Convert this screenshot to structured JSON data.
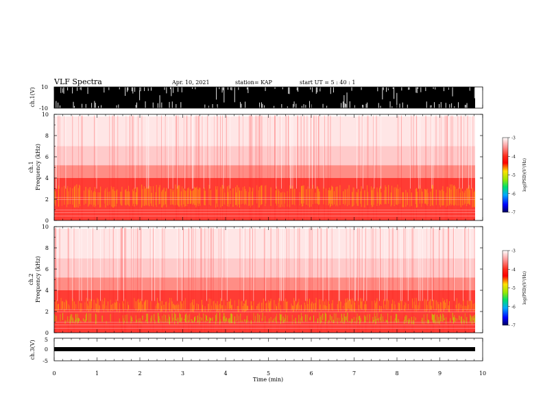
{
  "header": {
    "title": "VLF Spectra",
    "date": "Apr. 10, 2021",
    "station": "station= KAP",
    "start": "start  UT =   5 : 40 : 1"
  },
  "colorbar": {
    "label": "log(PSD)(V²/Hz)",
    "ticks": [
      "-3",
      "-4",
      "-5",
      "-6",
      "-7"
    ],
    "colors": [
      "#ffffff",
      "#ff9090",
      "#ff2a1a",
      "#ff0000",
      "#ffe000",
      "#9be800",
      "#00e06a",
      "#00a8ff",
      "#0000ff",
      "#000060"
    ]
  },
  "chart_data": [
    {
      "type": "line",
      "ylabel": "ch.1(V)",
      "ylim": [
        -10,
        10
      ],
      "yticks": [
        "10",
        "-10"
      ],
      "description_note": "",
      "values": []
    },
    {
      "type": "heatmap",
      "ylabel": "ch.1\nFrequency (kHz)",
      "ylabel_lines": [
        "ch.1",
        "Frequency (kHz)"
      ],
      "ylim": [
        0,
        10
      ],
      "yticks": [
        "0",
        "2",
        "4",
        "6",
        "8",
        "10"
      ],
      "xlim": [
        0,
        10
      ]
    },
    {
      "type": "heatmap",
      "ylabel_lines": [
        "ch.2",
        "Frequency (kHz)"
      ],
      "ylim": [
        0,
        10
      ],
      "yticks": [
        "0",
        "2",
        "4",
        "6",
        "8",
        "10"
      ],
      "xlim": [
        0,
        10
      ]
    },
    {
      "type": "line",
      "ylabel": "ch.3(V)",
      "ylim": [
        -5,
        5
      ],
      "yticks": [
        "5",
        "0",
        "-5"
      ],
      "xlabel": "Time  (min)",
      "xlim": [
        0,
        10
      ],
      "xticks": [
        "0",
        "1",
        "2",
        "3",
        "4",
        "5",
        "6",
        "7",
        "8",
        "9",
        "10"
      ]
    }
  ]
}
